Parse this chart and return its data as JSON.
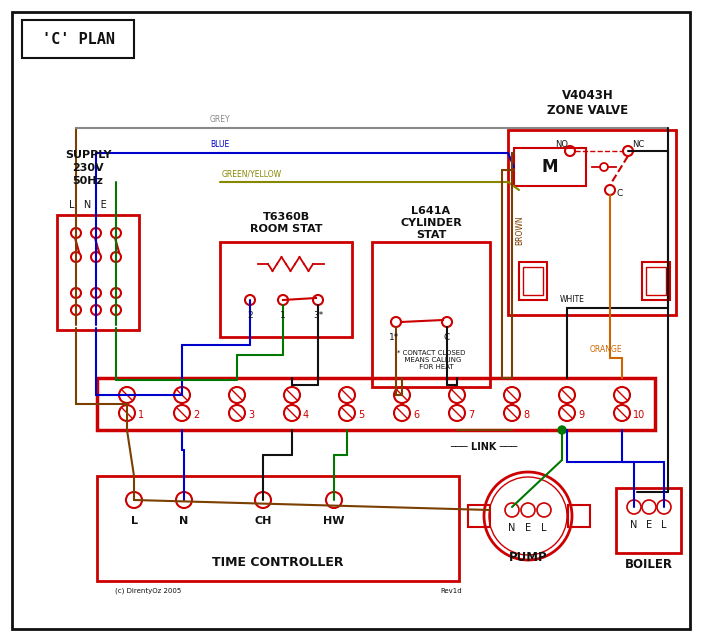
{
  "title": "'C' PLAN",
  "bg": "#ffffff",
  "red": "#cc0000",
  "blue": "#0000cc",
  "green": "#007700",
  "brown": "#7b3f00",
  "grey": "#888888",
  "orange": "#cc6600",
  "black": "#111111",
  "gy": "#888800",
  "supply_lbl": "SUPPLY\n230V\n50Hz",
  "lne": "L   N   E",
  "zone_valve": "V4043H\nZONE VALVE",
  "room_stat": "T6360B\nROOM STAT",
  "cyl_stat": "L641A\nCYLINDER\nSTAT",
  "time_ctrl": "TIME CONTROLLER",
  "pump_lbl": "PUMP",
  "boiler_lbl": "BOILER",
  "link_lbl": "LINK",
  "copyright": "(c) DirentyOz 2005",
  "rev": "Rev1d"
}
